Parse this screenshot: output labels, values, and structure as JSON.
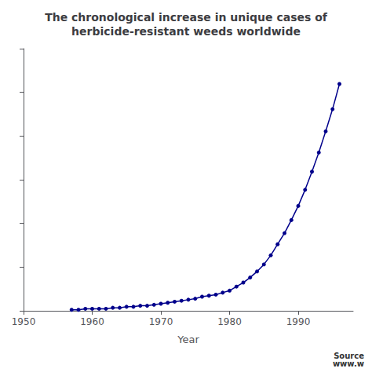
{
  "chart_data": {
    "type": "line",
    "title": "The chronological increase in unique cases of\nherbicide-resistant weeds worldwide",
    "x_label": "Year",
    "annotations": [
      "Source\nwww.w"
    ],
    "x": [
      1957,
      1958,
      1959,
      1960,
      1961,
      1962,
      1963,
      1964,
      1965,
      1966,
      1967,
      1968,
      1969,
      1970,
      1971,
      1972,
      1973,
      1974,
      1975,
      1976,
      1977,
      1978,
      1979,
      1980,
      1981,
      1982,
      1983,
      1984,
      1985,
      1986,
      1987,
      1988,
      1989,
      1990,
      1991,
      1992,
      1993,
      1994,
      1995,
      1996
    ],
    "values": [
      1,
      1,
      2,
      2,
      2,
      2,
      3,
      3,
      4,
      4,
      5,
      5,
      6,
      7,
      8,
      9,
      10,
      11,
      12,
      14,
      15,
      16,
      18,
      20,
      24,
      28,
      33,
      39,
      46,
      55,
      66,
      77,
      90,
      104,
      120,
      138,
      157,
      178,
      200,
      225
    ],
    "color": "#00008B",
    "marker": "circle",
    "xlim": [
      1950,
      1998
    ],
    "xticks": [
      1950,
      1960,
      1970,
      1980,
      1990
    ],
    "ylim": [
      0,
      260
    ],
    "yticks": [
      0,
      43.333333333333336,
      86.66666666666667,
      130,
      173.33333333333334,
      216.66666666666669,
      260
    ],
    "tick_labels": "x",
    "grid": false
  }
}
